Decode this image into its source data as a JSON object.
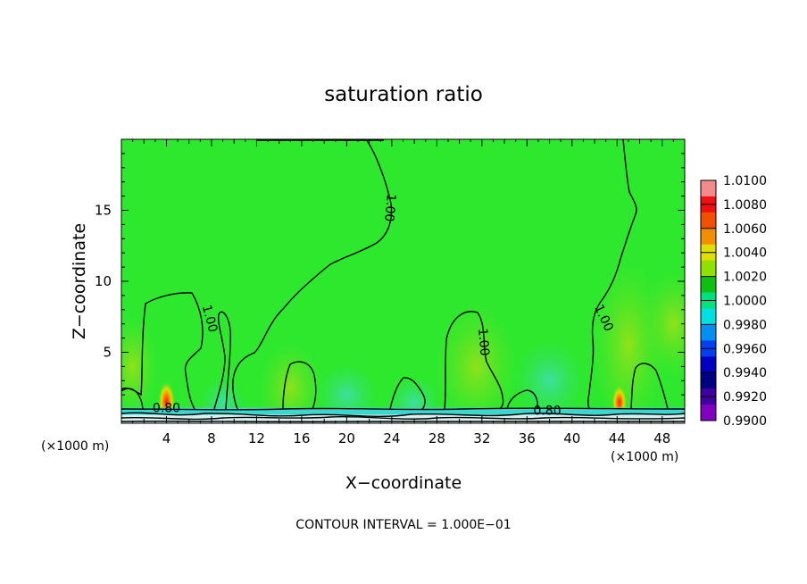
{
  "chart_data": {
    "type": "heatmap",
    "title": "saturation ratio",
    "xlabel": "X−coordinate",
    "ylabel": "Z−coordinate",
    "x_unit_left": "(×1000 m)",
    "x_unit_right": "(×1000 m)",
    "footer": "CONTOUR INTERVAL = 1.000E−01",
    "xlim": [
      0,
      50
    ],
    "ylim": [
      0,
      20
    ],
    "x_ticks": [
      4,
      8,
      12,
      16,
      20,
      24,
      28,
      32,
      36,
      40,
      44,
      48
    ],
    "y_ticks": [
      5,
      10,
      15
    ],
    "contour_labels": [
      {
        "text": "1.00",
        "x": 23.5,
        "y": 15.2,
        "angle": 95
      },
      {
        "text": "1.00",
        "x": 7.5,
        "y": 7.3,
        "angle": 75
      },
      {
        "text": "1.00",
        "x": 31.8,
        "y": 5.7,
        "angle": 85
      },
      {
        "text": "1.00",
        "x": 42.5,
        "y": 7.3,
        "angle": 65
      },
      {
        "text": "0.80",
        "x": 4,
        "y": 0.8,
        "angle": 0
      },
      {
        "text": "0.80",
        "x": 37.8,
        "y": 0.6,
        "angle": 0
      }
    ],
    "colorbar": {
      "labels": [
        "1.0100",
        "1.0080",
        "1.0060",
        "1.0040",
        "1.0020",
        "1.0000",
        "0.9980",
        "0.9960",
        "0.9940",
        "0.9920",
        "0.9900"
      ],
      "colors_top_to_bottom": [
        "#f28c8c",
        "#f01010",
        "#f05000",
        "#f09000",
        "#e0e000",
        "#90e000",
        "#10c010",
        "#00e080",
        "#00e0e0",
        "#0090f0",
        "#0040f0",
        "#0000c0",
        "#000080",
        "#4000a0",
        "#8000c0"
      ]
    },
    "colors": {
      "background_field": "#2ee82e",
      "warm_patch": "#7ee61c",
      "cool_patch": "#5ce07a",
      "boundary_layer": "#40e0c0",
      "hot_spot": "#f02000"
    }
  }
}
